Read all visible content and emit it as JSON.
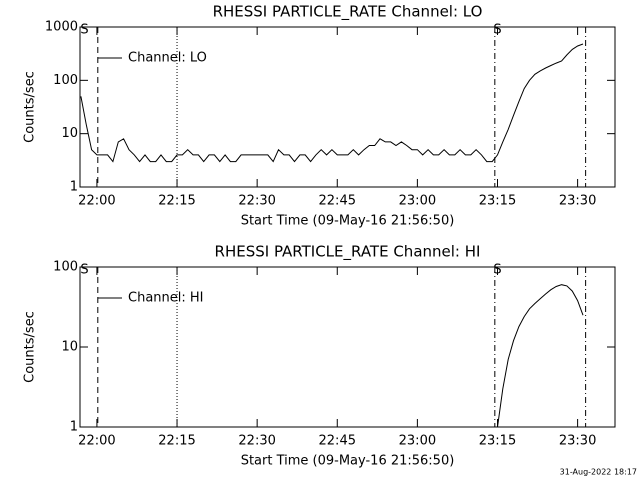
{
  "chart_data": [
    {
      "type": "line",
      "title": "RHESSI PARTICLE_RATE Channel: LO",
      "x_label": "Start Time (09-May-16 21:56:50)",
      "y_label": "Counts/sec",
      "log_y": true,
      "legend": "upper left",
      "xlim": [
        "21:56:50",
        "23:37:00"
      ],
      "xticks": [
        "22:00",
        "22:15",
        "22:30",
        "22:45",
        "23:00",
        "23:15",
        "23:30"
      ],
      "ylim": [
        1,
        1000
      ],
      "yticks": [
        1,
        10,
        100,
        1000
      ],
      "markers": [
        {
          "x": "22:00:10",
          "style": "dashed"
        },
        {
          "x": "22:15:00",
          "style": "dotted"
        },
        {
          "x": "23:14:30",
          "style": "dashdot"
        },
        {
          "x": "23:31:30",
          "style": "dashdot"
        }
      ],
      "annotations": [
        {
          "text": "S",
          "x": "21:57:40"
        },
        {
          "text": "S",
          "x": "23:15:00"
        }
      ],
      "series": [
        {
          "name": "Channel: LO",
          "color": "#000000",
          "x": [
            "21:57",
            "21:58",
            "21:59",
            "22:00",
            "22:01",
            "22:02",
            "22:03",
            "22:04",
            "22:05",
            "22:06",
            "22:07",
            "22:08",
            "22:09",
            "22:10",
            "22:11",
            "22:12",
            "22:13",
            "22:14",
            "22:15",
            "22:16",
            "22:17",
            "22:18",
            "22:19",
            "22:20",
            "22:21",
            "22:22",
            "22:23",
            "22:24",
            "22:25",
            "22:26",
            "22:27",
            "22:28",
            "22:29",
            "22:30",
            "22:31",
            "22:32",
            "22:33",
            "22:34",
            "22:35",
            "22:36",
            "22:37",
            "22:38",
            "22:39",
            "22:40",
            "22:41",
            "22:42",
            "22:43",
            "22:44",
            "22:45",
            "22:46",
            "22:47",
            "22:48",
            "22:49",
            "22:50",
            "22:51",
            "22:52",
            "22:53",
            "22:54",
            "22:55",
            "22:56",
            "22:57",
            "22:58",
            "22:59",
            "23:00",
            "23:01",
            "23:02",
            "23:03",
            "23:04",
            "23:05",
            "23:06",
            "23:07",
            "23:08",
            "23:09",
            "23:10",
            "23:11",
            "23:12",
            "23:13",
            "23:14",
            "23:15",
            "23:16",
            "23:17",
            "23:18",
            "23:19",
            "23:20",
            "23:21",
            "23:22",
            "23:23",
            "23:24",
            "23:25",
            "23:26",
            "23:27",
            "23:28",
            "23:29",
            "23:30",
            "23:31"
          ],
          "values": [
            50,
            15,
            5,
            4,
            4,
            4,
            3,
            7,
            8,
            5,
            4,
            3,
            4,
            3,
            3,
            4,
            3,
            3,
            4,
            4,
            5,
            4,
            4,
            3,
            4,
            4,
            3,
            4,
            3,
            3,
            4,
            4,
            4,
            4,
            4,
            4,
            3,
            5,
            4,
            4,
            3,
            4,
            4,
            3,
            4,
            5,
            4,
            5,
            4,
            4,
            4,
            5,
            4,
            5,
            6,
            6,
            8,
            7,
            7,
            6,
            7,
            6,
            5,
            5,
            4,
            5,
            4,
            4,
            5,
            4,
            4,
            5,
            4,
            4,
            5,
            4,
            3,
            3,
            4,
            7,
            12,
            22,
            40,
            70,
            100,
            130,
            150,
            170,
            190,
            210,
            230,
            300,
            380,
            440,
            480
          ]
        }
      ]
    },
    {
      "type": "line",
      "title": "RHESSI PARTICLE_RATE Channel: HI",
      "x_label": "Start Time (09-May-16 21:56:50)",
      "y_label": "Counts/sec",
      "log_y": true,
      "legend": "upper left",
      "xlim": [
        "21:56:50",
        "23:37:00"
      ],
      "xticks": [
        "22:00",
        "22:15",
        "22:30",
        "22:45",
        "23:00",
        "23:15",
        "23:30"
      ],
      "ylim": [
        1,
        100
      ],
      "yticks": [
        1,
        10,
        100
      ],
      "markers": [
        {
          "x": "22:00:10",
          "style": "dashed"
        },
        {
          "x": "22:15:00",
          "style": "dotted"
        },
        {
          "x": "23:14:30",
          "style": "dashdot"
        },
        {
          "x": "23:31:30",
          "style": "dashdot"
        }
      ],
      "annotations": [
        {
          "text": "S",
          "x": "21:57:40"
        },
        {
          "text": "S",
          "x": "23:15:00"
        }
      ],
      "series": [
        {
          "name": "Channel: HI",
          "color": "#000000",
          "x": [
            "23:15",
            "23:16",
            "23:17",
            "23:18",
            "23:19",
            "23:20",
            "23:21",
            "23:22",
            "23:23",
            "23:24",
            "23:25",
            "23:26",
            "23:27",
            "23:28",
            "23:29",
            "23:30",
            "23:31"
          ],
          "values": [
            1,
            3,
            7,
            12,
            18,
            24,
            30,
            35,
            40,
            46,
            52,
            57,
            60,
            58,
            50,
            38,
            25
          ]
        }
      ]
    }
  ],
  "footer": "31-Aug-2022 18:17"
}
